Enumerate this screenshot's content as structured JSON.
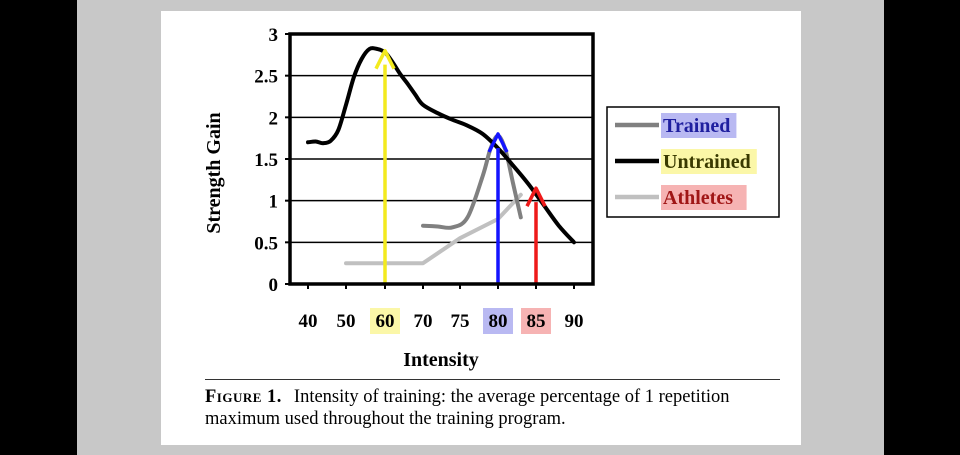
{
  "caption": {
    "label": "Figure 1.",
    "text": "Intensity of training: the average percentage of 1 repetition maximum used throughout the training program."
  },
  "chart_data": {
    "type": "line",
    "title": "",
    "xlabel": "Intensity",
    "ylabel": "Strength Gain",
    "ylim": [
      0,
      3
    ],
    "y_ticks": [
      "0",
      "0.5",
      "1",
      "1.5",
      "2",
      "2.5",
      "3"
    ],
    "x_ticks": [
      {
        "label": "40",
        "highlight": null
      },
      {
        "label": "50",
        "highlight": null
      },
      {
        "label": "60",
        "highlight": "#fbf7a8"
      },
      {
        "label": "70",
        "highlight": null
      },
      {
        "label": "75",
        "highlight": null
      },
      {
        "label": "80",
        "highlight": "#b9b9f2"
      },
      {
        "label": "85",
        "highlight": "#f6b3b3"
      },
      {
        "label": "90",
        "highlight": null
      }
    ],
    "grid": "horizontal",
    "legend_position": "right",
    "series": [
      {
        "name": "Trained",
        "color": "#808080",
        "label_bg": "#b9b9f2",
        "label_color": "#1f1f9f",
        "x": [
          70,
          72,
          74,
          76,
          78,
          79,
          80,
          81,
          82,
          83
        ],
        "y": [
          0.7,
          0.69,
          0.68,
          0.8,
          1.3,
          1.62,
          1.78,
          1.6,
          1.2,
          0.8
        ]
      },
      {
        "name": "Untrained",
        "color": "#000000",
        "label_bg": "#fbf7a8",
        "label_color": "#3a3a00",
        "x": [
          40,
          42,
          44,
          46,
          48,
          50,
          52,
          54,
          56,
          58,
          60,
          62,
          64,
          66,
          68,
          70,
          72,
          74,
          76,
          78,
          80,
          82,
          84,
          86,
          88,
          90
        ],
        "y": [
          1.7,
          1.71,
          1.69,
          1.72,
          1.85,
          2.15,
          2.48,
          2.7,
          2.82,
          2.82,
          2.78,
          2.66,
          2.52,
          2.4,
          2.27,
          2.15,
          2.05,
          1.97,
          1.9,
          1.8,
          1.63,
          1.42,
          1.2,
          0.95,
          0.7,
          0.5
        ]
      },
      {
        "name": "Athletes",
        "color": "#c0c0c0",
        "label_bg": "#f6b3b3",
        "label_color": "#a01616",
        "x": [
          50,
          70,
          75,
          80,
          83
        ],
        "y": [
          0.25,
          0.25,
          0.55,
          0.78,
          1.07
        ]
      }
    ],
    "arrows": [
      {
        "x": 60,
        "color": "#f3ea1e",
        "y_top": 2.8
      },
      {
        "x": 80,
        "color": "#1414ff",
        "y_top": 1.8
      },
      {
        "x": 85,
        "color": "#ee1a1a",
        "y_top": 1.15
      }
    ]
  }
}
